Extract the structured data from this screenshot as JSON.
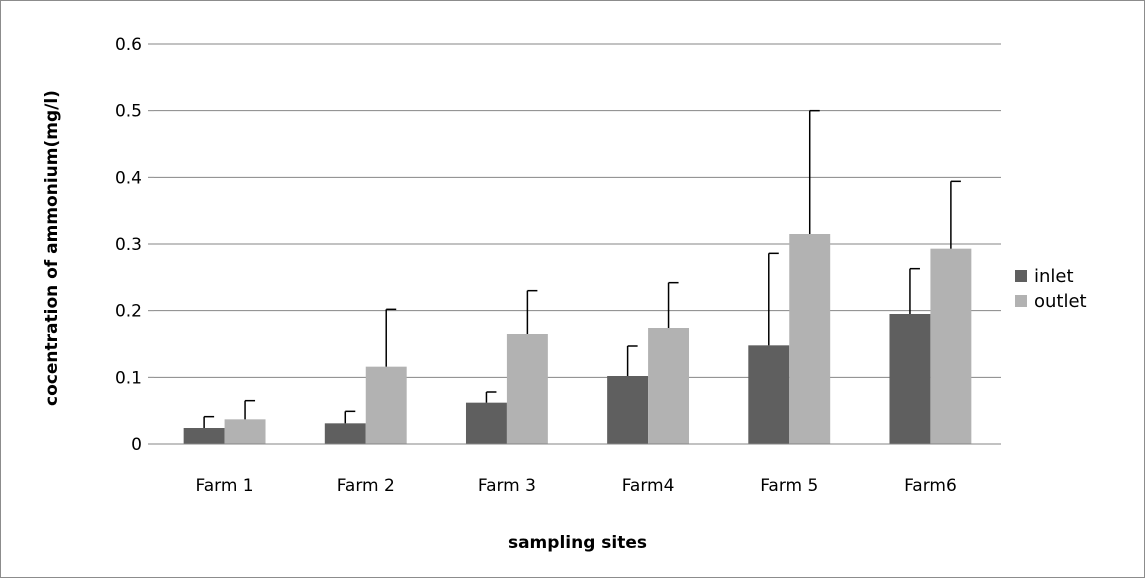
{
  "chart_data": {
    "type": "bar",
    "title": "",
    "xlabel": "sampling sites",
    "ylabel": "cocentration of ammonium(mg/l)",
    "categories": [
      "Farm 1",
      "Farm 2",
      "Farm 3",
      "Farm4",
      "Farm 5",
      "Farm6"
    ],
    "ylim": [
      0,
      0.6
    ],
    "yticks": [
      0,
      0.1,
      0.2,
      0.3,
      0.4,
      0.5,
      0.6
    ],
    "ytick_labels": [
      "0",
      "0.1",
      "0.2",
      "0.3",
      "0.4",
      "0.5",
      "0.6"
    ],
    "grid": true,
    "legend_position": "right",
    "series": [
      {
        "name": "inlet",
        "color": "#5f5f5f",
        "values": [
          0.024,
          0.031,
          0.062,
          0.102,
          0.148,
          0.195
        ],
        "error_upper": [
          0.017,
          0.018,
          0.016,
          0.045,
          0.138,
          0.068
        ]
      },
      {
        "name": "outlet",
        "color": "#b2b2b2",
        "values": [
          0.037,
          0.116,
          0.165,
          0.174,
          0.315,
          0.293
        ],
        "error_upper": [
          0.028,
          0.086,
          0.065,
          0.068,
          0.185,
          0.101
        ]
      }
    ]
  }
}
